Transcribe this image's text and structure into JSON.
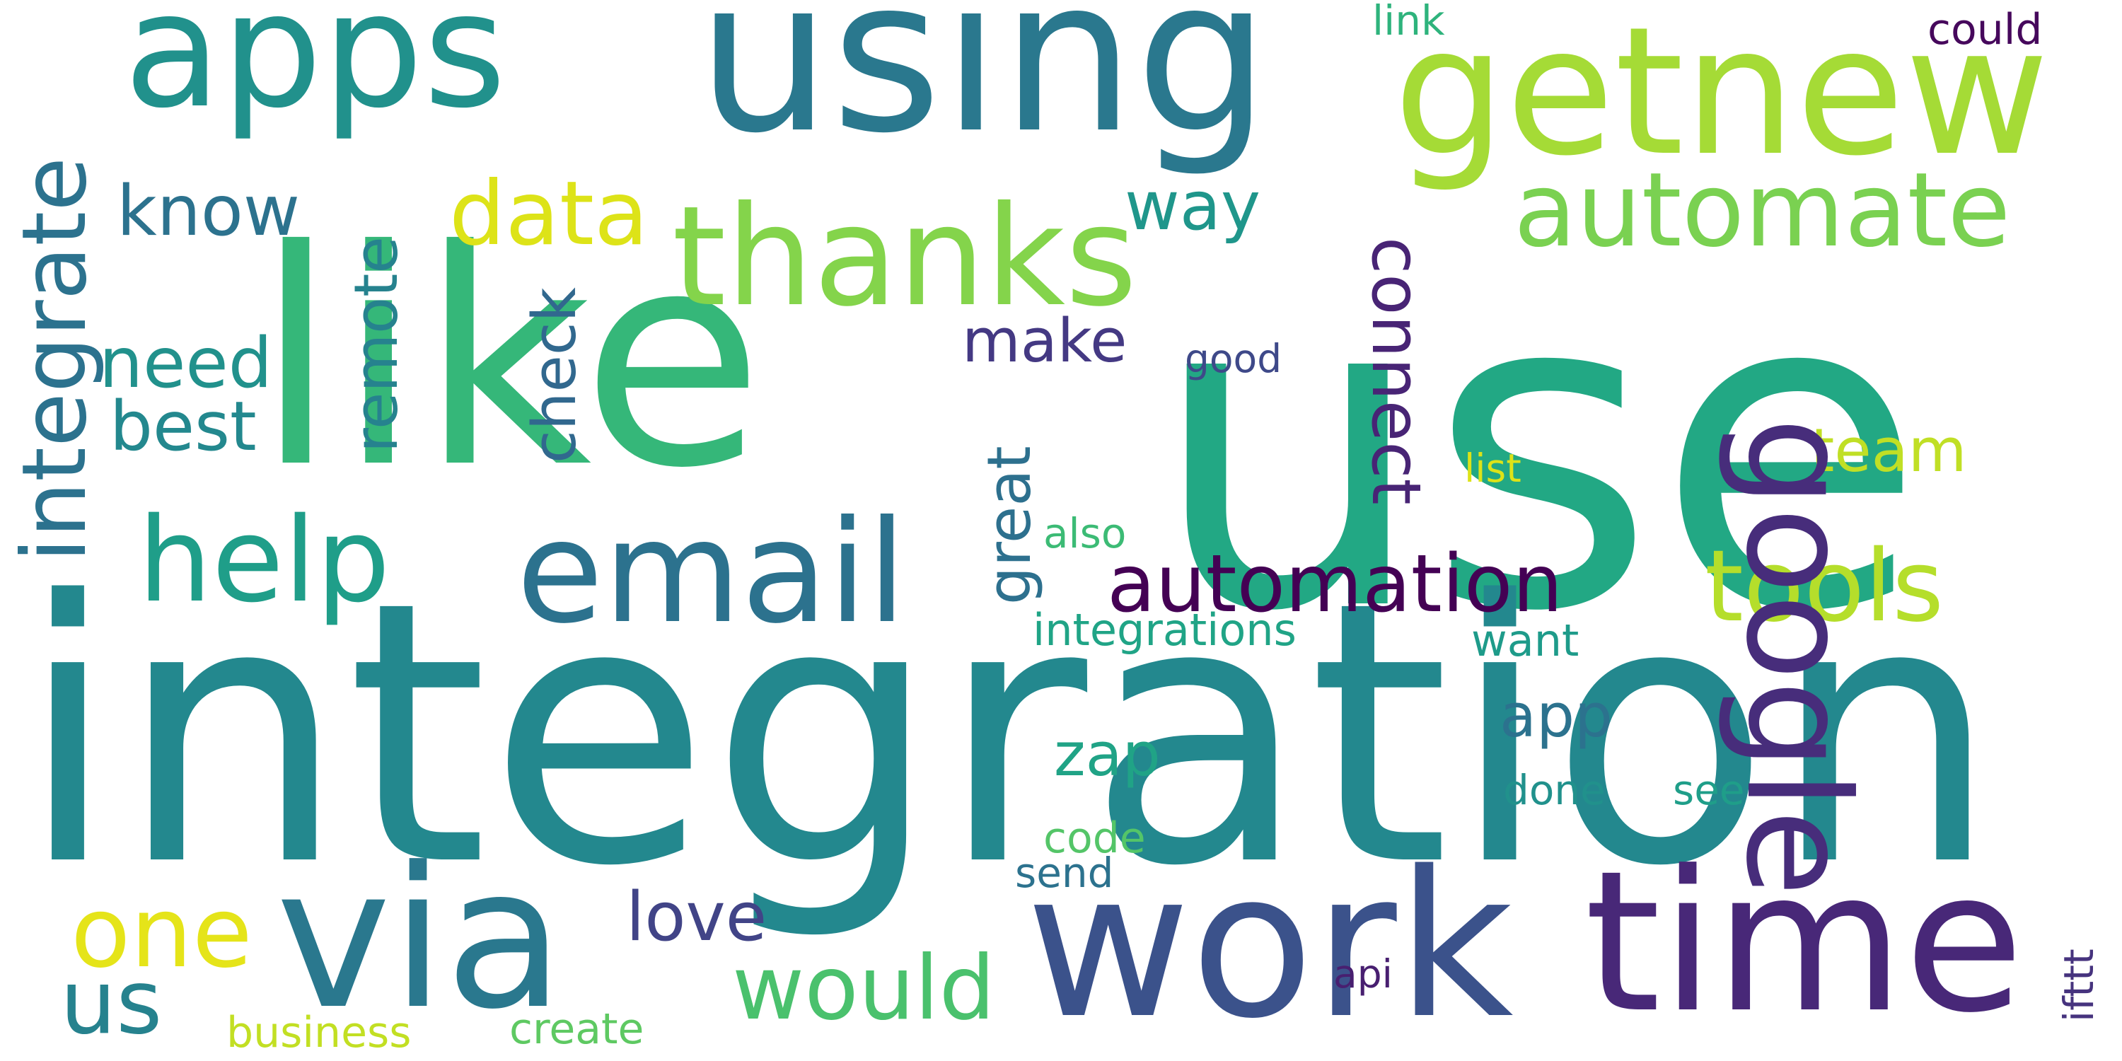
{
  "words": [
    {
      "text": "use",
      "color": "#22a884"
    },
    {
      "text": "integration",
      "color": "#23888e"
    },
    {
      "text": "like",
      "color": "#35b779"
    },
    {
      "text": "using",
      "color": "#2a788e"
    },
    {
      "text": "getnew",
      "color": "#a5db36"
    },
    {
      "text": "work",
      "color": "#3b528b"
    },
    {
      "text": "time",
      "color": "#482878"
    },
    {
      "text": "apps",
      "color": "#21918c"
    },
    {
      "text": "via",
      "color": "#2a788e"
    },
    {
      "text": "email",
      "color": "#2c728e"
    },
    {
      "text": "thanks",
      "color": "#84d44b"
    },
    {
      "text": "automate",
      "color": "#7ad151"
    },
    {
      "text": "google",
      "color": "#472d7b"
    },
    {
      "text": "help",
      "color": "#1f9e89"
    },
    {
      "text": "integrate",
      "color": "#2c728e"
    },
    {
      "text": "tools",
      "color": "#b5de2b"
    },
    {
      "text": "automation",
      "color": "#440154"
    },
    {
      "text": "data",
      "color": "#dde318"
    },
    {
      "text": "would",
      "color": "#4ac16d"
    },
    {
      "text": "one",
      "color": "#e5e419"
    },
    {
      "text": "connect",
      "color": "#482475"
    },
    {
      "text": "great",
      "color": "#2d708e"
    },
    {
      "text": "know",
      "color": "#2c728e"
    },
    {
      "text": "remote",
      "color": "#26828e"
    },
    {
      "text": "check",
      "color": "#31688e"
    },
    {
      "text": "need",
      "color": "#21918c"
    },
    {
      "text": "best",
      "color": "#23888e"
    },
    {
      "text": "way",
      "color": "#1f968b"
    },
    {
      "text": "make",
      "color": "#443983"
    },
    {
      "text": "us",
      "color": "#26828e"
    },
    {
      "text": "love",
      "color": "#414487"
    },
    {
      "text": "team",
      "color": "#c0df25"
    },
    {
      "text": "zap",
      "color": "#20a386"
    },
    {
      "text": "app",
      "color": "#2c728e"
    },
    {
      "text": "integrations",
      "color": "#20a486"
    },
    {
      "text": "also",
      "color": "#3cbb75"
    },
    {
      "text": "want",
      "color": "#1e9b8a"
    },
    {
      "text": "list",
      "color": "#dde318"
    },
    {
      "text": "good",
      "color": "#3e4989"
    },
    {
      "text": "code",
      "color": "#54c568"
    },
    {
      "text": "send",
      "color": "#2c728e"
    },
    {
      "text": "done",
      "color": "#21918c"
    },
    {
      "text": "see",
      "color": "#1f9e89"
    },
    {
      "text": "api",
      "color": "#481f70"
    },
    {
      "text": "ifttt",
      "color": "#46337e"
    },
    {
      "text": "could",
      "color": "#46085c"
    },
    {
      "text": "link",
      "color": "#2eb37c"
    },
    {
      "text": "create",
      "color": "#5ec962"
    },
    {
      "text": "business",
      "color": "#c2df23"
    }
  ]
}
